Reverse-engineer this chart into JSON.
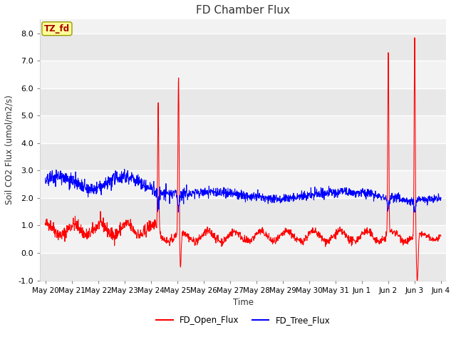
{
  "title": "FD Chamber Flux",
  "xlabel": "Time",
  "ylabel": "Soil CO2 Flux (umol/m2/s)",
  "ylim": [
    -1.0,
    8.5
  ],
  "yticks": [
    -1.0,
    0.0,
    1.0,
    2.0,
    3.0,
    4.0,
    5.0,
    6.0,
    7.0,
    8.0
  ],
  "legend_labels": [
    "FD_Open_Flux",
    "FD_Tree_Flux"
  ],
  "legend_colors": [
    "red",
    "blue"
  ],
  "tag_label": "TZ_fd",
  "tag_bg": "#FFFF99",
  "tag_text_color": "#AA0000",
  "seed": 42,
  "n_points": 1500,
  "duration_days": 15.0,
  "figsize": [
    6.4,
    4.8
  ],
  "dpi": 100
}
